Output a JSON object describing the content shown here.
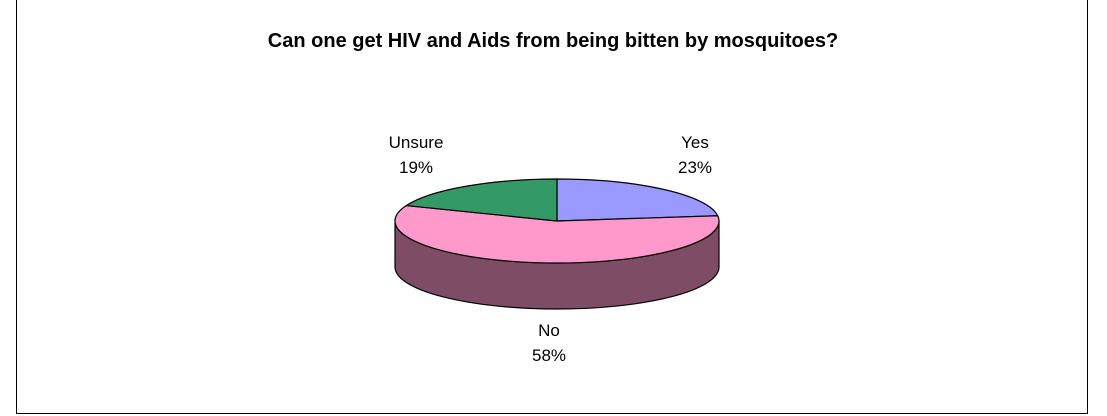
{
  "chart_data": {
    "type": "pie",
    "title": "Can one get HIV and Aids from being bitten by mosquitoes?",
    "three_d": true,
    "categories": [
      "Yes",
      "No",
      "Unsure"
    ],
    "values": [
      23,
      58,
      19
    ],
    "labels": [
      {
        "category": "Yes",
        "percent": "23%"
      },
      {
        "category": "No",
        "percent": "58%"
      },
      {
        "category": "Unsure",
        "percent": "19%"
      }
    ],
    "colors": {
      "Yes": "#9999ff",
      "No": "#ff99cc",
      "Unsure": "#339966",
      "No_side": "#7f4c66",
      "Unsure_side": "#1f5c3d",
      "Yes_side": "#5c5c99"
    },
    "legend": "none"
  }
}
